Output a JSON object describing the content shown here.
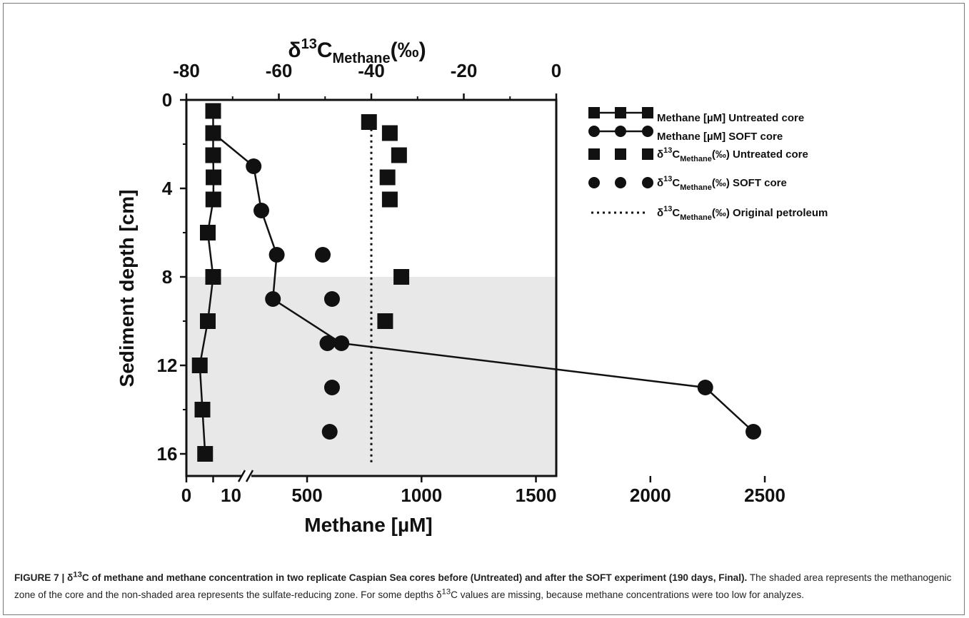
{
  "chart_data": {
    "type": "scatter",
    "title": "",
    "top_axis": {
      "label": "δ13CMethane(‰)",
      "label_main": "δ",
      "label_sup": "13",
      "label_c": "C",
      "label_sub": "Methane",
      "label_unit": "(‰)",
      "range": [
        -80,
        0
      ],
      "ticks": [
        "-80",
        "-60",
        "-40",
        "-20",
        "0"
      ]
    },
    "bottom_axis": {
      "label": "Methane [µM]",
      "broken": true,
      "ticks": [
        "0",
        "10",
        "500",
        "1000",
        "1500",
        "2000",
        "2500"
      ]
    },
    "y_axis": {
      "label": "Sediment depth [cm]",
      "range": [
        0,
        16
      ],
      "inverted": true,
      "ticks": [
        "0",
        "4",
        "8",
        "12",
        "16"
      ]
    },
    "shaded_zone": {
      "from_depth": 8,
      "to_depth": 16.5,
      "color": "#e8e8e8"
    },
    "series": [
      {
        "name": "Methane [µM] Untreated core",
        "axis": "bottom",
        "marker": "square",
        "line": true,
        "points": [
          [
            10,
            0.5
          ],
          [
            10,
            1.5
          ],
          [
            10,
            2.5
          ],
          [
            12,
            3.5
          ],
          [
            11,
            4.5
          ],
          [
            8,
            6
          ],
          [
            10,
            8
          ],
          [
            8,
            10
          ],
          [
            5,
            12
          ],
          [
            6,
            14
          ],
          [
            7,
            16
          ]
        ]
      },
      {
        "name": "Methane [µM] SOFT core",
        "axis": "bottom",
        "marker": "circle",
        "line": true,
        "points": [
          [
            10,
            1.5
          ],
          [
            220,
            3
          ],
          [
            260,
            5
          ],
          [
            340,
            7
          ],
          [
            320,
            9
          ],
          [
            650,
            11
          ],
          [
            2240,
            13
          ],
          [
            2450,
            15
          ]
        ]
      },
      {
        "name": "δ13CMethane(‰) Untreated core",
        "axis": "top",
        "marker": "square",
        "line": false,
        "points": [
          [
            -40.5,
            1
          ],
          [
            -36,
            1.5
          ],
          [
            -34,
            2.5
          ],
          [
            -36.5,
            3.5
          ],
          [
            -36,
            4.5
          ],
          [
            -33.5,
            8
          ],
          [
            -37,
            10
          ]
        ]
      },
      {
        "name": "δ13CMethane(‰) SOFT core",
        "axis": "top",
        "marker": "circle",
        "line": false,
        "points": [
          [
            -50.5,
            7
          ],
          [
            -48.5,
            9
          ],
          [
            -49.5,
            11
          ],
          [
            -48.5,
            13
          ],
          [
            -49,
            15
          ]
        ]
      },
      {
        "name": "δ13CMethane(‰) Original petroleum",
        "axis": "top",
        "marker": "none",
        "line": "dotted",
        "value": -40
      }
    ],
    "legend": {
      "placement": "right",
      "entries": [
        {
          "pre": "",
          "sup": "",
          "mid": "Methane [µM] Untreated core",
          "sub": "",
          "post": ""
        },
        {
          "pre": "",
          "sup": "",
          "mid": "Methane [µM] SOFT core",
          "sub": "",
          "post": ""
        },
        {
          "pre": "δ",
          "sup": "13",
          "mid": "C",
          "sub": "Methane",
          "post": "(‰) Untreated core"
        },
        {
          "pre": "δ",
          "sup": "13",
          "mid": "C",
          "sub": "Methane",
          "post": "(‰) SOFT core"
        },
        {
          "pre": "δ",
          "sup": "13",
          "mid": "C",
          "sub": "Methane",
          "post": "(‰) Original petroleum"
        }
      ]
    }
  },
  "caption": {
    "title_a": "FIGURE 7 | δ",
    "title_sup": "13",
    "title_b": "C of methane and methane concentration in two replicate Caspian Sea cores before (Untreated) and after the SOFT experiment (190 days, Final).",
    "body_a": " The shaded area represents the methanogenic zone of the core and the non-shaded area represents the sulfate-reducing zone. For some depths δ",
    "body_sup": "13",
    "body_b": "C values are missing, because methane concentrations were too low for analyzes."
  }
}
